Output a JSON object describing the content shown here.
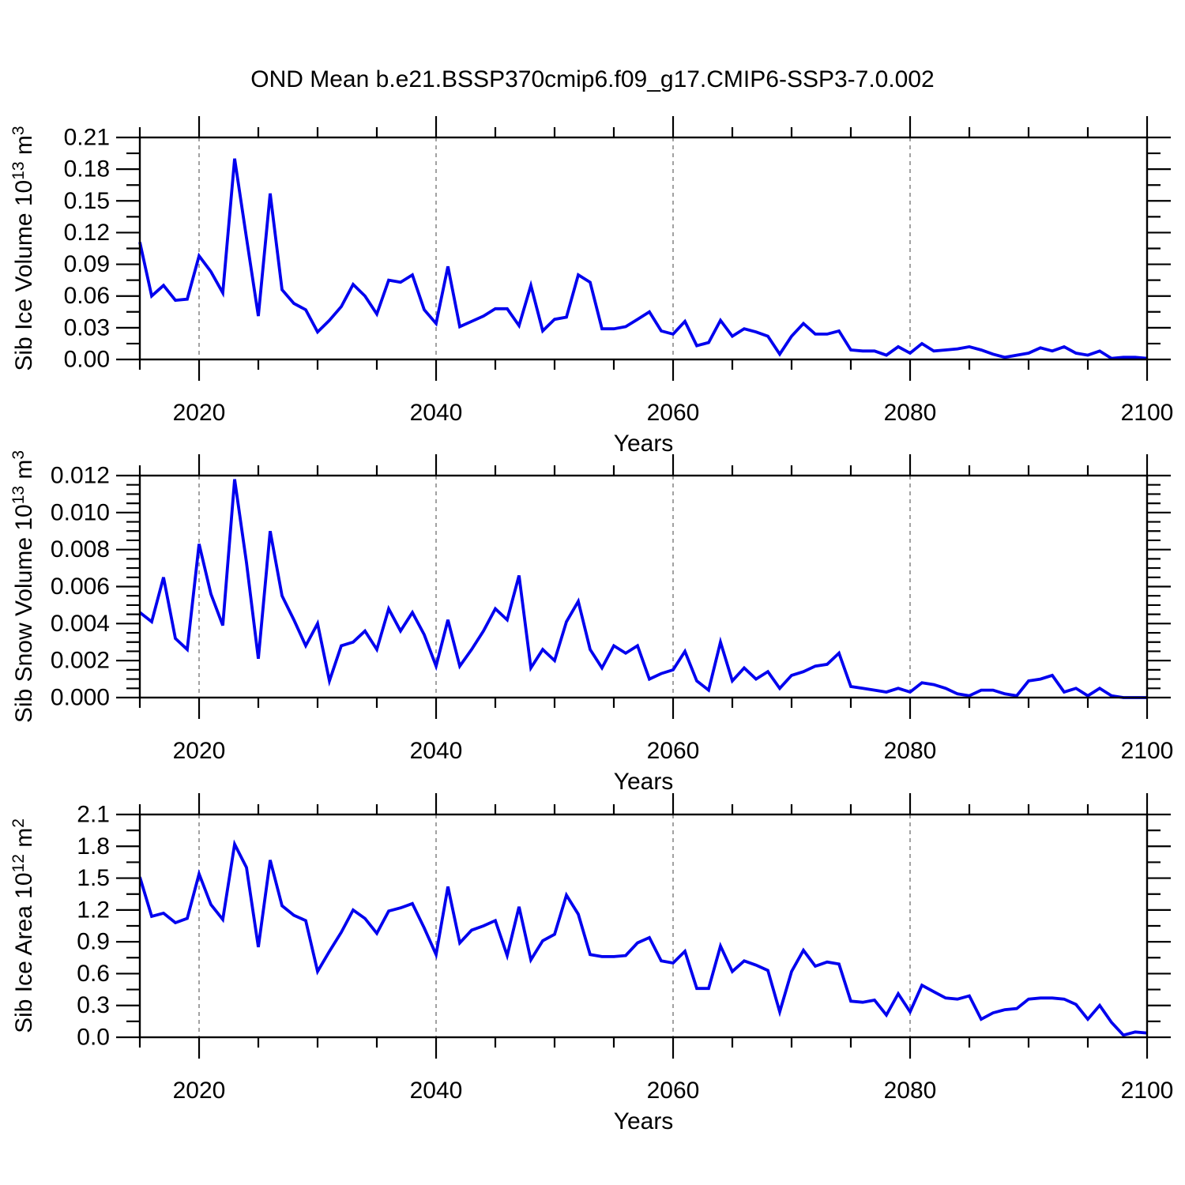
{
  "title": "OND Mean b.e21.BSSP370cmip6.f09_g17.CMIP6-SSP3-7.0.002",
  "colors": {
    "line": "#0000ee",
    "gridline": "#8a8a8a",
    "axis": "#000000",
    "background": "#ffffff"
  },
  "x_axis": {
    "label": "Years",
    "range": [
      2015,
      2100
    ],
    "major_ticks": [
      2020,
      2040,
      2060,
      2080,
      2100
    ],
    "tick_labels": [
      "2020",
      "2040",
      "2060",
      "2080",
      "2100"
    ],
    "minor_step": 5,
    "gridlines": [
      2020,
      2040,
      2060,
      2080
    ]
  },
  "years": [
    2015,
    2016,
    2017,
    2018,
    2019,
    2020,
    2021,
    2022,
    2023,
    2024,
    2025,
    2026,
    2027,
    2028,
    2029,
    2030,
    2031,
    2032,
    2033,
    2034,
    2035,
    2036,
    2037,
    2038,
    2039,
    2040,
    2041,
    2042,
    2043,
    2044,
    2045,
    2046,
    2047,
    2048,
    2049,
    2050,
    2051,
    2052,
    2053,
    2054,
    2055,
    2056,
    2057,
    2058,
    2059,
    2060,
    2061,
    2062,
    2063,
    2064,
    2065,
    2066,
    2067,
    2068,
    2069,
    2070,
    2071,
    2072,
    2073,
    2074,
    2075,
    2076,
    2077,
    2078,
    2079,
    2080,
    2081,
    2082,
    2083,
    2084,
    2085,
    2086,
    2087,
    2088,
    2089,
    2090,
    2091,
    2092,
    2093,
    2094,
    2095,
    2096,
    2097,
    2098,
    2099,
    2100
  ],
  "chart_data": [
    {
      "type": "line",
      "name": "sib-ice-volume",
      "ylabel_parts": [
        [
          "Sib Ice Volume 10",
          0
        ],
        [
          "13",
          1
        ],
        [
          " m",
          0
        ],
        [
          "3",
          1
        ]
      ],
      "ylabel_plain": "Sib Ice Volume 10^13 m^3",
      "xlabel": "Years",
      "ylim": [
        0,
        0.21
      ],
      "y_ticks": {
        "values": [
          0.0,
          0.03,
          0.06,
          0.09,
          0.12,
          0.15,
          0.18,
          0.21
        ],
        "labels": [
          "0.00",
          "0.03",
          "0.06",
          "0.09",
          "0.12",
          "0.15",
          "0.18",
          "0.21"
        ]
      },
      "y_minor_step": 0.015,
      "grid": "x-dashed",
      "legend": "none",
      "values": [
        0.111,
        0.06,
        0.07,
        0.056,
        0.057,
        0.098,
        0.083,
        0.063,
        0.19,
        0.115,
        0.041,
        0.157,
        0.066,
        0.053,
        0.047,
        0.026,
        0.037,
        0.05,
        0.071,
        0.06,
        0.043,
        0.075,
        0.073,
        0.08,
        0.047,
        0.034,
        0.088,
        0.031,
        0.036,
        0.041,
        0.048,
        0.048,
        0.032,
        0.07,
        0.027,
        0.038,
        0.04,
        0.08,
        0.073,
        0.029,
        0.029,
        0.031,
        0.038,
        0.045,
        0.027,
        0.024,
        0.036,
        0.013,
        0.016,
        0.037,
        0.022,
        0.029,
        0.026,
        0.022,
        0.005,
        0.022,
        0.034,
        0.024,
        0.024,
        0.027,
        0.009,
        0.008,
        0.008,
        0.004,
        0.012,
        0.006,
        0.015,
        0.008,
        0.009,
        0.01,
        0.012,
        0.009,
        0.005,
        0.002,
        0.004,
        0.006,
        0.011,
        0.008,
        0.012,
        0.006,
        0.004,
        0.008,
        0.001,
        0.002,
        0.002,
        0.001
      ]
    },
    {
      "type": "line",
      "name": "sib-snow-volume",
      "ylabel_parts": [
        [
          "Sib Snow Volume 10",
          0
        ],
        [
          "13",
          1
        ],
        [
          " m",
          0
        ],
        [
          "3",
          1
        ]
      ],
      "ylabel_plain": "Sib Snow Volume 10^13 m^3",
      "xlabel": "Years",
      "ylim": [
        0,
        0.012
      ],
      "y_ticks": {
        "values": [
          0.0,
          0.002,
          0.004,
          0.006,
          0.008,
          0.01,
          0.012
        ],
        "labels": [
          "0.000",
          "0.002",
          "0.004",
          "0.006",
          "0.008",
          "0.010",
          "0.012"
        ]
      },
      "y_minor_step": 0.0005,
      "grid": "x-dashed",
      "legend": "none",
      "values": [
        0.0046,
        0.0041,
        0.0065,
        0.0032,
        0.0026,
        0.0083,
        0.0056,
        0.0039,
        0.0118,
        0.0073,
        0.0021,
        0.009,
        0.0055,
        0.0042,
        0.0028,
        0.004,
        0.0009,
        0.0028,
        0.003,
        0.0036,
        0.0026,
        0.0048,
        0.0036,
        0.0046,
        0.0034,
        0.0017,
        0.0042,
        0.0017,
        0.0026,
        0.0036,
        0.0048,
        0.0042,
        0.0066,
        0.0016,
        0.0026,
        0.002,
        0.0041,
        0.0052,
        0.0026,
        0.0016,
        0.0028,
        0.0024,
        0.0028,
        0.001,
        0.0013,
        0.0015,
        0.0025,
        0.0009,
        0.0004,
        0.003,
        0.0009,
        0.0016,
        0.001,
        0.0014,
        0.0005,
        0.0012,
        0.0014,
        0.0017,
        0.0018,
        0.0024,
        0.0006,
        0.0005,
        0.0004,
        0.0003,
        0.0005,
        0.0003,
        0.0008,
        0.0007,
        0.0005,
        0.0002,
        0.0001,
        0.0004,
        0.0004,
        0.0002,
        0.0001,
        0.0009,
        0.001,
        0.0012,
        0.0003,
        0.0005,
        0.0001,
        0.0005,
        0.0001,
        0.0,
        0.0,
        0.0
      ]
    },
    {
      "type": "line",
      "name": "sib-ice-area",
      "ylabel_parts": [
        [
          "Sib Ice Area 10",
          0
        ],
        [
          "12",
          1
        ],
        [
          " m",
          0
        ],
        [
          "2",
          1
        ]
      ],
      "ylabel_plain": "Sib Ice Area 10^12 m^2",
      "xlabel": "Years",
      "ylim": [
        0,
        2.1
      ],
      "y_ticks": {
        "values": [
          0.0,
          0.3,
          0.6,
          0.9,
          1.2,
          1.5,
          1.8,
          2.1
        ],
        "labels": [
          "0.0",
          "0.3",
          "0.6",
          "0.9",
          "1.2",
          "1.5",
          "1.8",
          "2.1"
        ]
      },
      "y_minor_step": 0.15,
      "grid": "x-dashed",
      "legend": "none",
      "values": [
        1.51,
        1.14,
        1.17,
        1.08,
        1.12,
        1.54,
        1.25,
        1.11,
        1.82,
        1.6,
        0.85,
        1.67,
        1.24,
        1.15,
        1.1,
        0.62,
        0.81,
        0.99,
        1.2,
        1.12,
        0.98,
        1.19,
        1.22,
        1.26,
        1.03,
        0.78,
        1.42,
        0.89,
        1.01,
        1.05,
        1.1,
        0.77,
        1.23,
        0.73,
        0.91,
        0.97,
        1.34,
        1.16,
        0.78,
        0.76,
        0.76,
        0.77,
        0.89,
        0.94,
        0.72,
        0.7,
        0.81,
        0.46,
        0.46,
        0.86,
        0.62,
        0.72,
        0.68,
        0.63,
        0.24,
        0.62,
        0.82,
        0.67,
        0.71,
        0.69,
        0.34,
        0.33,
        0.35,
        0.21,
        0.41,
        0.24,
        0.49,
        0.43,
        0.37,
        0.36,
        0.39,
        0.17,
        0.23,
        0.26,
        0.27,
        0.36,
        0.37,
        0.37,
        0.36,
        0.31,
        0.17,
        0.3,
        0.14,
        0.02,
        0.05,
        0.04
      ]
    }
  ]
}
